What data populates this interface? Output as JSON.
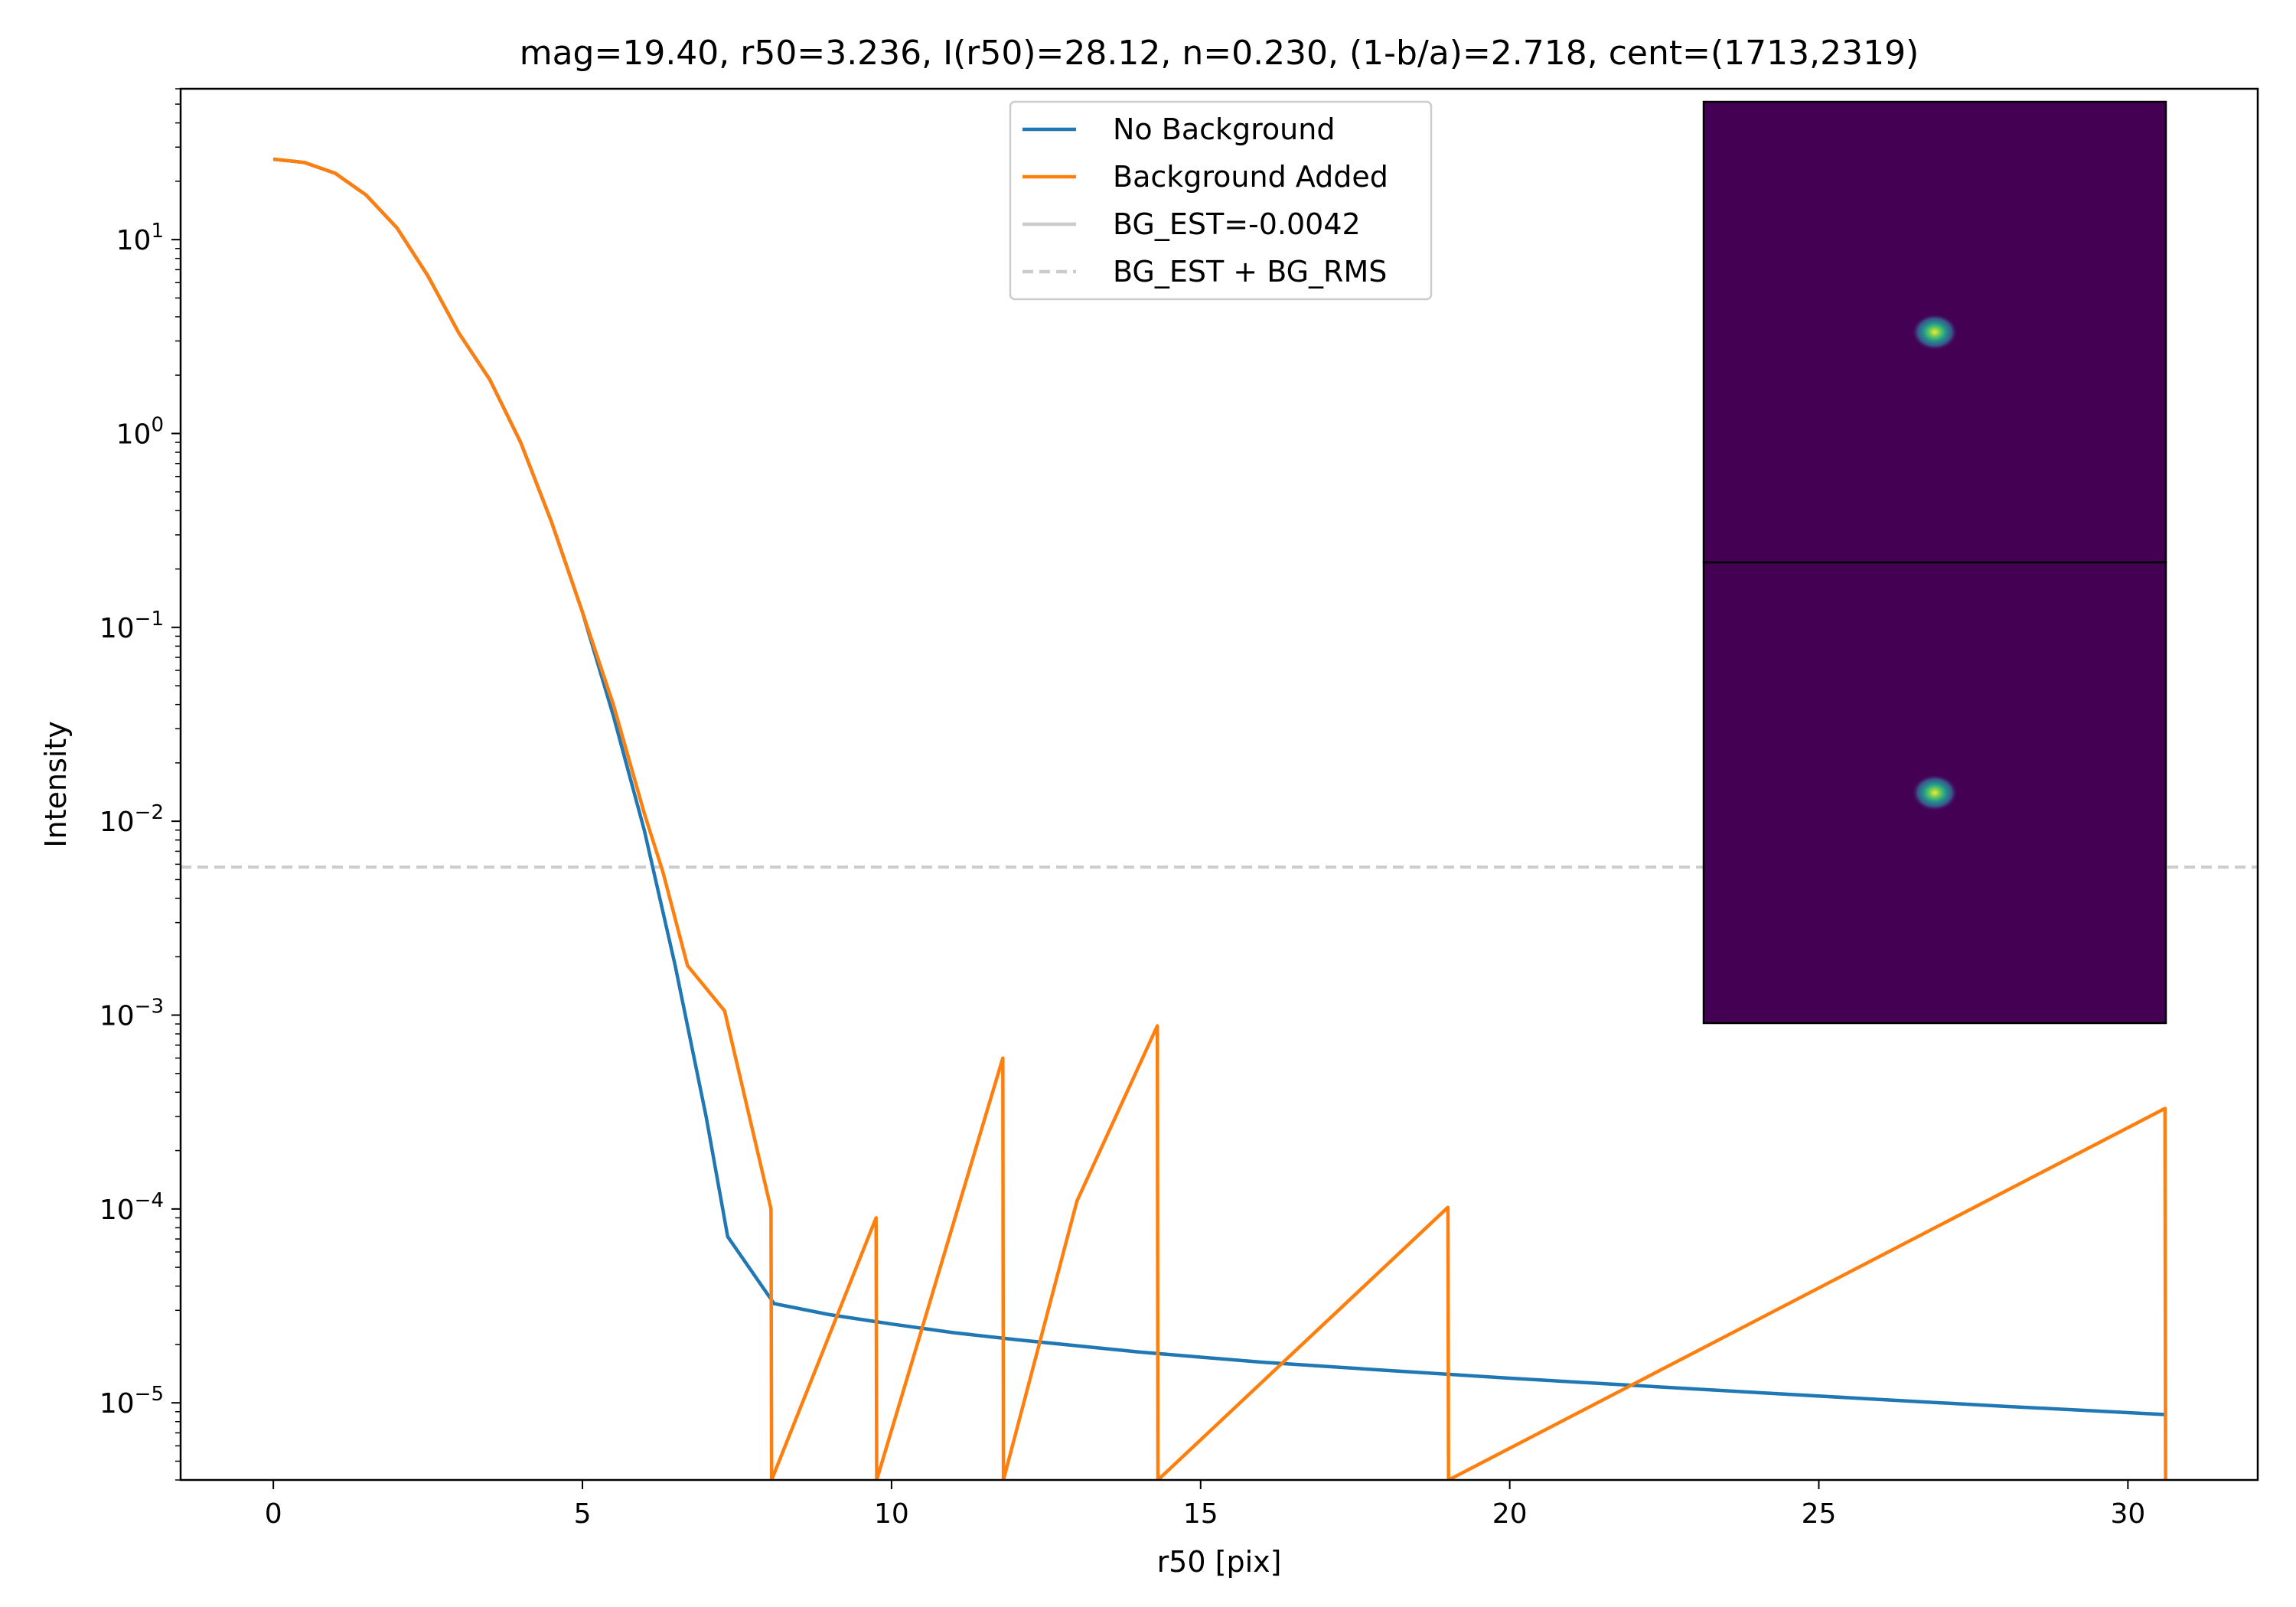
{
  "chart_data": {
    "type": "line",
    "title": "mag=19.40, r50=3.236, I(r50)=28.12, n=0.230, (1-b/a)=2.718, cent=(1713,2319)",
    "xlabel": "r50 [pix]",
    "ylabel": "Intensity",
    "xlim": [
      -1.5,
      32.1
    ],
    "ylim": [
      4e-06,
      60
    ],
    "yscale": "log",
    "grid": false,
    "legend_position": "top-center",
    "x_ticks": [
      0,
      5,
      10,
      15,
      20,
      25,
      30
    ],
    "x_tick_labels": [
      "0",
      "5",
      "10",
      "15",
      "20",
      "25",
      "30"
    ],
    "y_ticks": [
      1e-05,
      0.0001,
      0.001,
      0.01,
      0.1,
      1,
      10
    ],
    "y_tick_mantissa": [
      "10",
      "10",
      "10",
      "10",
      "10",
      "10",
      "10"
    ],
    "y_tick_exponents": [
      "−5",
      "−4",
      "−3",
      "−2",
      "−1",
      "0",
      "1"
    ],
    "series": [
      {
        "name": "No Background",
        "color": "#1f77b4",
        "style": "solid",
        "x": [
          0,
          0.5,
          1.0,
          1.5,
          2.0,
          2.5,
          3.0,
          3.5,
          4.0,
          4.5,
          5.0,
          5.5,
          6.0,
          6.5,
          7.0,
          7.35,
          8.1,
          9.0,
          10.0,
          11.0,
          12.0,
          13.0,
          14.0,
          15.0,
          16.0,
          18.0,
          20.0,
          22.0,
          24.0,
          26.0,
          28.0,
          30.6
        ],
        "y": [
          26,
          25,
          22,
          17,
          11.5,
          6.5,
          3.3,
          1.9,
          0.9,
          0.35,
          0.12,
          0.035,
          0.009,
          0.0018,
          0.0003,
          7.2e-05,
          3.25e-05,
          2.85e-05,
          2.55e-05,
          2.3e-05,
          2.12e-05,
          1.97e-05,
          1.83e-05,
          1.72e-05,
          1.62e-05,
          1.47e-05,
          1.34e-05,
          1.23e-05,
          1.13e-05,
          1.04e-05,
          9.6e-06,
          8.7e-06
        ]
      },
      {
        "name": "Background Added",
        "color": "#ff7f0e",
        "style": "solid",
        "x": [
          0,
          0.5,
          1.0,
          1.5,
          2.0,
          2.5,
          3.0,
          3.5,
          4.0,
          4.5,
          5.0,
          5.5,
          6.0,
          6.3,
          6.7,
          7.3,
          8.05,
          8.06,
          9.75,
          9.76,
          11.8,
          11.81,
          13.0,
          14.3,
          14.31,
          19.0,
          19.01,
          30.6,
          30.61
        ],
        "y": [
          26,
          25,
          22,
          17,
          11.5,
          6.5,
          3.3,
          1.9,
          0.9,
          0.35,
          0.12,
          0.04,
          0.011,
          0.0055,
          0.0018,
          0.00105,
          0.0001,
          4e-06,
          9e-05,
          4e-06,
          0.0006,
          4e-06,
          0.00011,
          0.00088,
          4e-06,
          0.000102,
          4e-06,
          0.00033,
          4e-06
        ]
      }
    ],
    "reference_lines": [
      {
        "name": "BG_EST=-0.0042",
        "color": "#cccccc",
        "style": "solid",
        "y": -0.0042
      },
      {
        "name": "BG_EST + BG_RMS",
        "color": "#cccccc",
        "style": "dashed",
        "y": 0.0058
      }
    ],
    "insets": [
      {
        "name": "top-cutout",
        "background": "#440154",
        "source_x": 0.5,
        "source_y": 0.5
      },
      {
        "name": "bottom-cutout",
        "background": "#440154",
        "source_x": 0.5,
        "source_y": 0.5
      }
    ]
  }
}
